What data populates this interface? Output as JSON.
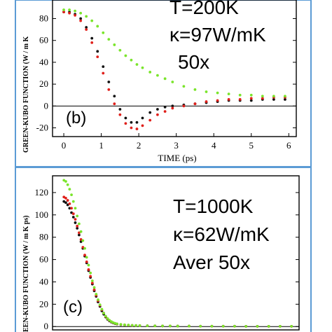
{
  "colors": {
    "black": "#111111",
    "red": "#e0201b",
    "green": "#7ae52b",
    "frame": "#5b9bd5"
  },
  "chart_data": [
    {
      "type": "scatter",
      "panel_label": "(b)",
      "ylabel": "GREEN-KUBO FUNCTION (W / m K",
      "xlabel": "TIME (ps)",
      "xlim": [
        -0.3,
        6.2
      ],
      "ylim": [
        -28,
        97
      ],
      "x_ticks": [
        0,
        1,
        2,
        3,
        4,
        5,
        6
      ],
      "y_ticks": [
        -20,
        0,
        20,
        40,
        60,
        80
      ],
      "annotations": [
        "T=200K",
        "κ=97W/mK",
        "50x"
      ],
      "series": [
        {
          "color": "black",
          "x": [
            0,
            0.15,
            0.3,
            0.45,
            0.6,
            0.75,
            0.9,
            1.05,
            1.2,
            1.35,
            1.5,
            1.65,
            1.8,
            1.95,
            2.1,
            2.3,
            2.5,
            2.7,
            2.9,
            3.2,
            3.5,
            3.8,
            4.1,
            4.4,
            4.7,
            5.0,
            5.3,
            5.6,
            5.9
          ],
          "y": [
            86,
            86,
            84,
            80,
            72,
            62,
            50,
            36,
            22,
            9,
            -3,
            -11,
            -15,
            -15,
            -11,
            -6,
            -3,
            -1,
            0,
            1,
            2,
            3,
            4,
            5,
            5,
            5,
            6,
            6,
            6
          ]
        },
        {
          "color": "red",
          "x": [
            0,
            0.15,
            0.3,
            0.45,
            0.6,
            0.75,
            0.9,
            1.05,
            1.2,
            1.35,
            1.5,
            1.65,
            1.8,
            1.95,
            2.1,
            2.3,
            2.5,
            2.7,
            2.9,
            3.2,
            3.5,
            3.8,
            4.1,
            4.4,
            4.7,
            5.0,
            5.3,
            5.6,
            5.9
          ],
          "y": [
            86,
            85,
            83,
            78,
            70,
            58,
            45,
            30,
            15,
            2,
            -8,
            -16,
            -20,
            -21,
            -18,
            -13,
            -8,
            -5,
            -2,
            0,
            2,
            4,
            5,
            6,
            6,
            7,
            7,
            8,
            8
          ]
        },
        {
          "color": "green",
          "x": [
            0,
            0.15,
            0.3,
            0.45,
            0.6,
            0.75,
            0.9,
            1.05,
            1.2,
            1.35,
            1.5,
            1.65,
            1.8,
            1.95,
            2.1,
            2.3,
            2.5,
            2.7,
            2.9,
            3.2,
            3.5,
            3.8,
            4.1,
            4.4,
            4.7,
            5.0,
            5.3,
            5.6,
            5.9
          ],
          "y": [
            88,
            88,
            87,
            85,
            82,
            78,
            73,
            67,
            61,
            56,
            51,
            46,
            42,
            38,
            35,
            31,
            28,
            25,
            22,
            18,
            15,
            13,
            12,
            11,
            10,
            10,
            9,
            9,
            9
          ]
        }
      ]
    },
    {
      "type": "scatter",
      "panel_label": "(c)",
      "ylabel": "EEN-KUBO FUNCTION (W / m K ps)",
      "xlim": [
        -0.3,
        6.2
      ],
      "ylim": [
        -3,
        135
      ],
      "y_ticks": [
        0,
        20,
        40,
        60,
        80,
        100,
        120
      ],
      "annotations": [
        "T=1000K",
        "κ=62W/mK",
        "Aver 50x"
      ],
      "series": [
        {
          "color": "black",
          "x": [
            0,
            0.05,
            0.1,
            0.15,
            0.2,
            0.25,
            0.3,
            0.35,
            0.4,
            0.45,
            0.5,
            0.55,
            0.6,
            0.65,
            0.7,
            0.75,
            0.8,
            0.85,
            0.9,
            0.95,
            1.0,
            1.05,
            1.1,
            1.15,
            1.2,
            1.25,
            1.3,
            1.35,
            1.4,
            1.5,
            1.6,
            1.7,
            1.8,
            1.9,
            2.0,
            2.2,
            2.4,
            2.6,
            2.8,
            3.0,
            3.3,
            3.6,
            3.9,
            4.2,
            4.5,
            4.8,
            5.1,
            5.4,
            5.7,
            6.0
          ],
          "y": [
            112,
            111,
            109,
            106,
            102,
            98,
            93,
            88,
            82,
            76,
            70,
            63,
            57,
            50,
            44,
            38,
            32,
            27,
            22,
            18,
            14,
            11,
            8.5,
            6.5,
            5,
            4,
            3.2,
            2.6,
            2.2,
            1.7,
            1.4,
            1.2,
            1.0,
            0.9,
            0.8,
            0.7,
            0.6,
            0.5,
            0.5,
            0.4,
            0.4,
            0.3,
            0.3,
            0.3,
            0.3,
            0.2,
            0.2,
            0.2,
            0.2,
            0.2
          ]
        },
        {
          "color": "red",
          "x": [
            0,
            0.05,
            0.1,
            0.15,
            0.2,
            0.25,
            0.3,
            0.35,
            0.4,
            0.45,
            0.5,
            0.55,
            0.6,
            0.65,
            0.7,
            0.75,
            0.8,
            0.85,
            0.9,
            0.95,
            1.0,
            1.05,
            1.1,
            1.15,
            1.2,
            1.25,
            1.3,
            1.35,
            1.4,
            1.5,
            1.6,
            1.7,
            1.8,
            1.9,
            2.0,
            2.2,
            2.4,
            2.6,
            2.8,
            3.0,
            3.3,
            3.6,
            3.9,
            4.2,
            4.5,
            4.8,
            5.1,
            5.4,
            5.7,
            6.0
          ],
          "y": [
            116,
            115,
            113,
            110,
            106,
            101,
            96,
            90,
            84,
            78,
            71,
            64,
            58,
            51,
            45,
            39,
            33,
            28,
            23,
            19,
            15,
            12,
            9,
            7,
            5.5,
            4.3,
            3.4,
            2.8,
            2.3,
            1.8,
            1.5,
            1.2,
            1.0,
            0.9,
            0.8,
            0.7,
            0.6,
            0.5,
            0.5,
            0.4,
            0.4,
            0.3,
            0.3,
            0.3,
            0.3,
            0.2,
            0.2,
            0.2,
            0.2,
            0.2
          ]
        },
        {
          "color": "green",
          "x": [
            0,
            0.05,
            0.1,
            0.15,
            0.2,
            0.25,
            0.3,
            0.35,
            0.4,
            0.45,
            0.5,
            0.55,
            0.6,
            0.65,
            0.7,
            0.75,
            0.8,
            0.85,
            0.9,
            0.95,
            1.0,
            1.05,
            1.1,
            1.15,
            1.2,
            1.25,
            1.3,
            1.35,
            1.4,
            1.5,
            1.6,
            1.7,
            1.8,
            1.9,
            2.0,
            2.2,
            2.4,
            2.6,
            2.8,
            3.0,
            3.3,
            3.6,
            3.9,
            4.2,
            4.5,
            4.8,
            5.1,
            5.4,
            5.7,
            6.0
          ],
          "y": [
            131,
            130,
            127,
            123,
            118,
            112,
            106,
            99,
            92,
            85,
            77,
            70,
            62,
            55,
            48,
            41,
            35,
            29,
            24,
            19.5,
            15.5,
            12,
            9.3,
            7.2,
            5.6,
            4.4,
            3.5,
            2.9,
            2.4,
            1.9,
            1.5,
            1.3,
            1.1,
            0.9,
            0.8,
            0.7,
            0.6,
            0.5,
            0.5,
            0.4,
            0.4,
            0.3,
            0.3,
            0.3,
            0.3,
            0.2,
            0.2,
            0.2,
            0.2,
            0.2
          ]
        }
      ]
    }
  ]
}
